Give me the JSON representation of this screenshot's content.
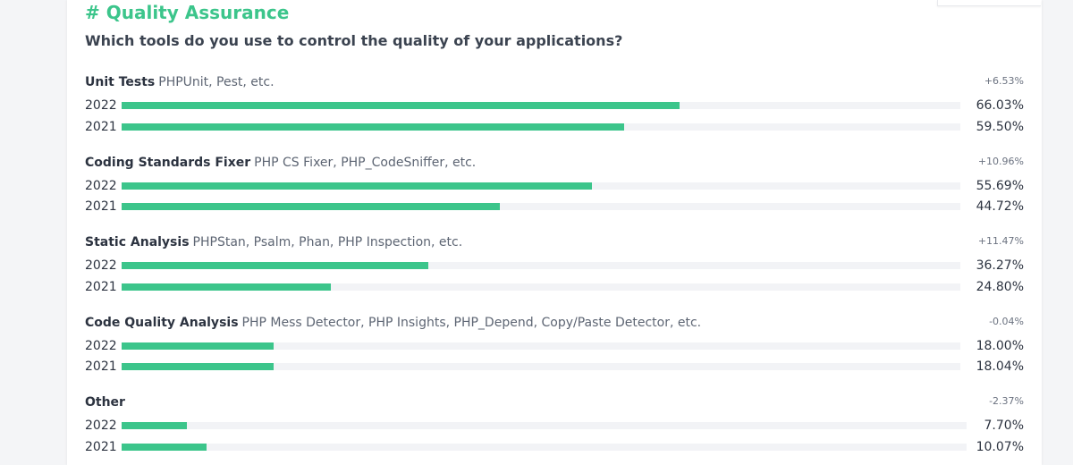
{
  "title": "# Quality Assurance",
  "question": "Which tools do you use to control the quality of your applications?",
  "chart_data": {
    "type": "bar",
    "orientation": "horizontal",
    "title": "# Quality Assurance",
    "subtitle": "Which tools do you use to control the quality of your applications?",
    "xlim": [
      0,
      100
    ],
    "categories": [
      {
        "name": "Unit Tests",
        "description": "PHPUnit, Pest, etc.",
        "change": "+6.53%",
        "values": [
          {
            "year": "2022",
            "value": 66.03,
            "label": "66.03%"
          },
          {
            "year": "2021",
            "value": 59.5,
            "label": "59.50%"
          }
        ]
      },
      {
        "name": "Coding Standards Fixer",
        "description": "PHP CS Fixer, PHP_CodeSniffer, etc.",
        "change": "+10.96%",
        "values": [
          {
            "year": "2022",
            "value": 55.69,
            "label": "55.69%"
          },
          {
            "year": "2021",
            "value": 44.72,
            "label": "44.72%"
          }
        ]
      },
      {
        "name": "Static Analysis",
        "description": "PHPStan, Psalm, Phan, PHP Inspection, etc.",
        "change": "+11.47%",
        "values": [
          {
            "year": "2022",
            "value": 36.27,
            "label": "36.27%"
          },
          {
            "year": "2021",
            "value": 24.8,
            "label": "24.80%"
          }
        ]
      },
      {
        "name": "Code Quality Analysis",
        "description": "PHP Mess Detector, PHP Insights, PHP_Depend, Copy/Paste Detector, etc.",
        "change": "-0.04%",
        "values": [
          {
            "year": "2022",
            "value": 18.0,
            "label": "18.00%"
          },
          {
            "year": "2021",
            "value": 18.04,
            "label": "18.04%"
          }
        ]
      },
      {
        "name": "Other",
        "description": "",
        "change": "-2.37%",
        "values": [
          {
            "year": "2022",
            "value": 7.7,
            "label": "7.70%"
          },
          {
            "year": "2021",
            "value": 10.07,
            "label": "10.07%"
          }
        ]
      }
    ],
    "colors": {
      "bar": "#3cc58b",
      "track": "#f2f3f6",
      "title": "#3cc58b"
    }
  }
}
